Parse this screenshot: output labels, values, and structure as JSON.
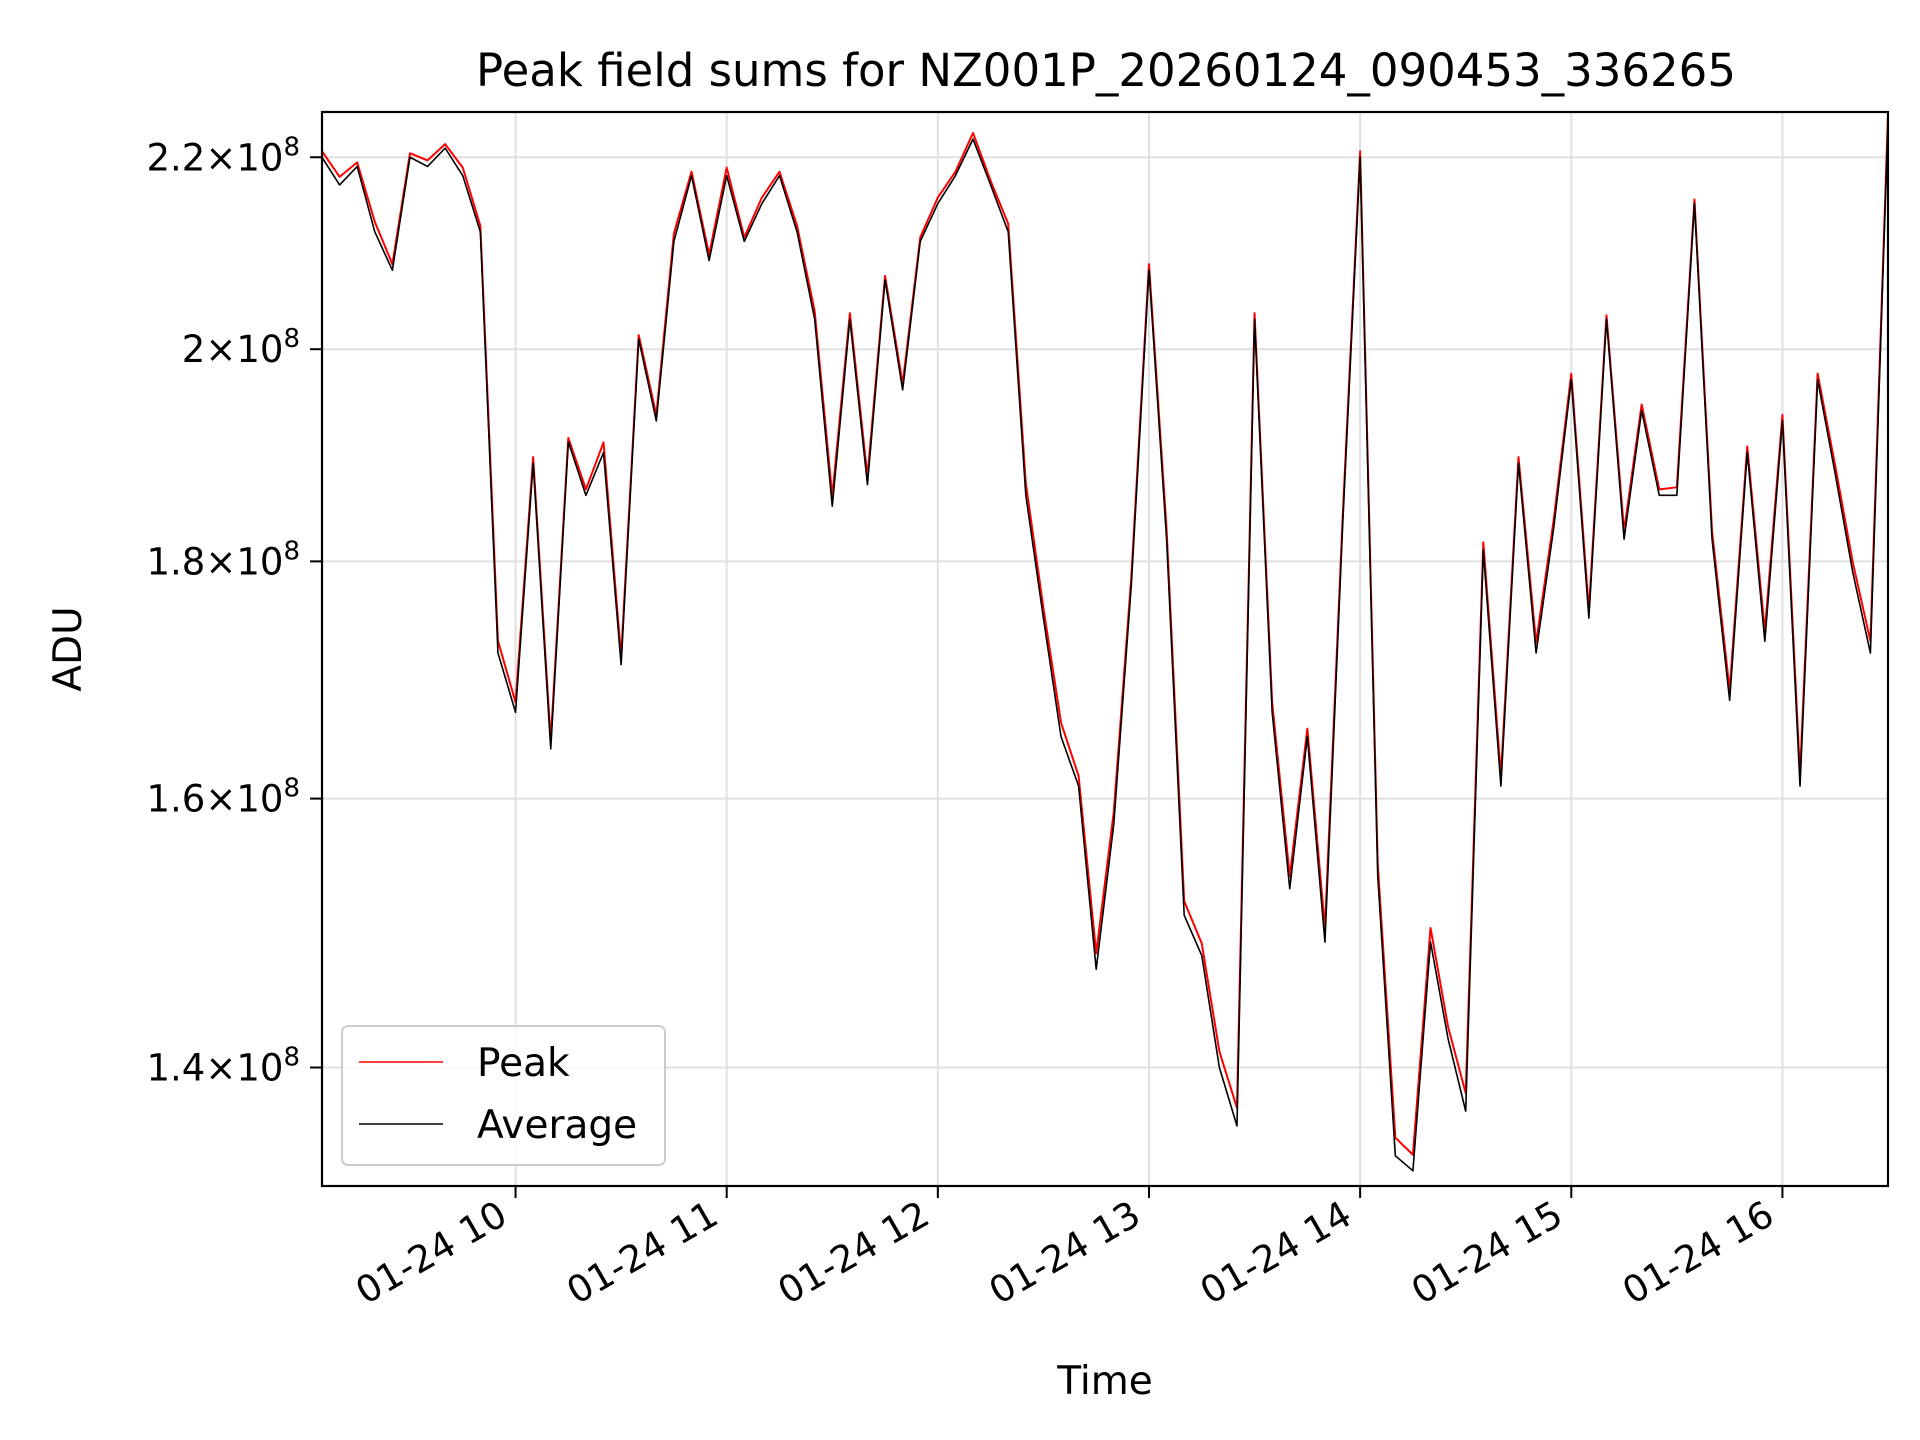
{
  "chart_data": {
    "type": "line",
    "title": "Peak field sums for NZ001P_20260124_090453_336265",
    "xlabel": "Time",
    "ylabel": "ADU",
    "y_scale": "log",
    "grid": true,
    "legend_position": "lower-left",
    "xlim": [
      "2026-01-24 09:05",
      "2026-01-24 16:30"
    ],
    "ylim": [
      132000000,
      225000000
    ],
    "x_ticks": [
      {
        "value": "2026-01-24 10:00",
        "label": "01-24 10"
      },
      {
        "value": "2026-01-24 11:00",
        "label": "01-24 11"
      },
      {
        "value": "2026-01-24 12:00",
        "label": "01-24 12"
      },
      {
        "value": "2026-01-24 13:00",
        "label": "01-24 13"
      },
      {
        "value": "2026-01-24 14:00",
        "label": "01-24 14"
      },
      {
        "value": "2026-01-24 15:00",
        "label": "01-24 15"
      },
      {
        "value": "2026-01-24 16:00",
        "label": "01-24 16"
      }
    ],
    "y_ticks": [
      {
        "value": 140000000,
        "mantissa": "1.4",
        "base": "10",
        "exponent": "8"
      },
      {
        "value": 160000000,
        "mantissa": "1.6",
        "base": "10",
        "exponent": "8"
      },
      {
        "value": 180000000,
        "mantissa": "1.8",
        "base": "10",
        "exponent": "8"
      },
      {
        "value": 200000000,
        "mantissa": "2",
        "base": "10",
        "exponent": "8"
      },
      {
        "value": 220000000,
        "mantissa": "2.2",
        "base": "10",
        "exponent": "8"
      }
    ],
    "series": [
      {
        "name": "Peak",
        "color": "#ff0000",
        "line_width": "thin"
      },
      {
        "name": "Average",
        "color": "#000000",
        "line_width": "thin"
      }
    ],
    "x": [
      "2026-01-24 09:05",
      "2026-01-24 09:10",
      "2026-01-24 09:15",
      "2026-01-24 09:20",
      "2026-01-24 09:25",
      "2026-01-24 09:30",
      "2026-01-24 09:35",
      "2026-01-24 09:40",
      "2026-01-24 09:45",
      "2026-01-24 09:50",
      "2026-01-24 09:55",
      "2026-01-24 10:00",
      "2026-01-24 10:05",
      "2026-01-24 10:10",
      "2026-01-24 10:15",
      "2026-01-24 10:20",
      "2026-01-24 10:25",
      "2026-01-24 10:30",
      "2026-01-24 10:35",
      "2026-01-24 10:40",
      "2026-01-24 10:45",
      "2026-01-24 10:50",
      "2026-01-24 10:55",
      "2026-01-24 11:00",
      "2026-01-24 11:05",
      "2026-01-24 11:10",
      "2026-01-24 11:15",
      "2026-01-24 11:20",
      "2026-01-24 11:25",
      "2026-01-24 11:30",
      "2026-01-24 11:35",
      "2026-01-24 11:40",
      "2026-01-24 11:45",
      "2026-01-24 11:50",
      "2026-01-24 11:55",
      "2026-01-24 12:00",
      "2026-01-24 12:05",
      "2026-01-24 12:10",
      "2026-01-24 12:15",
      "2026-01-24 12:20",
      "2026-01-24 12:25",
      "2026-01-24 12:30",
      "2026-01-24 12:35",
      "2026-01-24 12:40",
      "2026-01-24 12:45",
      "2026-01-24 12:50",
      "2026-01-24 12:55",
      "2026-01-24 13:00",
      "2026-01-24 13:05",
      "2026-01-24 13:10",
      "2026-01-24 13:15",
      "2026-01-24 13:20",
      "2026-01-24 13:25",
      "2026-01-24 13:30",
      "2026-01-24 13:35",
      "2026-01-24 13:40",
      "2026-01-24 13:45",
      "2026-01-24 13:50",
      "2026-01-24 13:55",
      "2026-01-24 14:00",
      "2026-01-24 14:05",
      "2026-01-24 14:10",
      "2026-01-24 14:15",
      "2026-01-24 14:20",
      "2026-01-24 14:25",
      "2026-01-24 14:30",
      "2026-01-24 14:35",
      "2026-01-24 14:40",
      "2026-01-24 14:45",
      "2026-01-24 14:50",
      "2026-01-24 14:55",
      "2026-01-24 15:00",
      "2026-01-24 15:05",
      "2026-01-24 15:10",
      "2026-01-24 15:15",
      "2026-01-24 15:20",
      "2026-01-24 15:25",
      "2026-01-24 15:30",
      "2026-01-24 15:35",
      "2026-01-24 15:40",
      "2026-01-24 15:45",
      "2026-01-24 15:50",
      "2026-01-24 15:55",
      "2026-01-24 16:00",
      "2026-01-24 16:05",
      "2026-01-24 16:10",
      "2026-01-24 16:15",
      "2026-01-24 16:20",
      "2026-01-24 16:25",
      "2026-01-24 16:30"
    ],
    "values": [
      220000000,
      217000000,
      219000000,
      212000000,
      208000000,
      220000000,
      219000000,
      221000000,
      218000000,
      212000000,
      172000000,
      167000000,
      189000000,
      164000000,
      191000000,
      186000000,
      190000000,
      171000000,
      201000000,
      193000000,
      211000000,
      218000000,
      209000000,
      218000000,
      211000000,
      215000000,
      218000000,
      212000000,
      203000000,
      185000000,
      203000000,
      187000000,
      207000000,
      196000000,
      211000000,
      215000000,
      218000000,
      222000000,
      217000000,
      212000000,
      186000000,
      175000000,
      165000000,
      161000000,
      147000000,
      158000000,
      178000000,
      208000000,
      182000000,
      151000000,
      148000000,
      140000000,
      136000000,
      203000000,
      167000000,
      153000000,
      165000000,
      149000000,
      183000000,
      220000000,
      154000000,
      134000000,
      133000000,
      149000000,
      142000000,
      137000000,
      181000000,
      161000000,
      189000000,
      172000000,
      183000000,
      197000000,
      175000000,
      203000000,
      182000000,
      194000000,
      186000000,
      186000000,
      215000000,
      182000000,
      168000000,
      190000000,
      173000000,
      193000000,
      161000000,
      197000000,
      188000000,
      179000000,
      172000000,
      224000000
    ],
    "peak_offsets_percent": [
      0.3,
      0.4,
      0.2,
      0.5,
      0.3,
      0.2,
      0.3,
      0.2,
      0.4,
      0.3,
      0.6,
      0.5,
      0.3,
      0.4,
      0.2,
      0.3,
      0.5,
      0.4,
      0.2,
      0.3,
      0.4,
      0.2,
      0.3,
      0.4,
      0.2,
      0.3,
      0.2,
      0.3,
      0.4,
      0.5,
      0.3,
      0.4,
      0.2,
      0.3,
      0.2,
      0.3,
      0.2,
      0.3,
      0.2,
      0.4,
      0.6,
      0.5,
      0.7,
      0.5,
      0.8,
      0.6,
      0.4,
      0.3,
      0.5,
      0.7,
      0.6,
      0.8,
      0.9,
      0.3,
      0.5,
      0.6,
      0.4,
      0.7,
      0.4,
      0.3,
      0.6,
      0.9,
      0.8,
      0.7,
      0.6,
      0.9,
      0.4,
      0.5,
      0.3,
      0.5,
      0.4,
      0.3,
      0.4,
      0.2,
      0.4,
      0.3,
      0.3,
      0.4,
      0.2,
      0.4,
      0.5,
      0.3,
      0.5,
      0.3,
      0.6,
      0.3,
      0.4,
      0.5,
      0.6,
      0.3
    ]
  }
}
